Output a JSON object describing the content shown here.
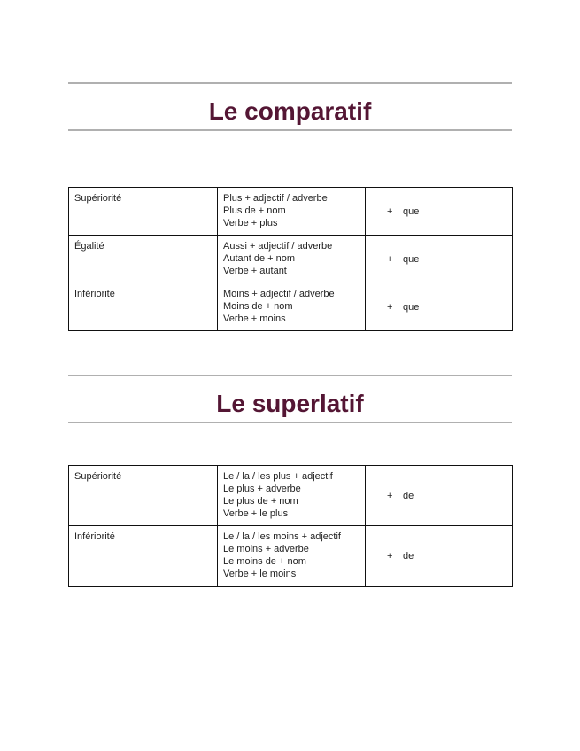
{
  "sections": [
    {
      "title": "Le comparatif",
      "rows": [
        {
          "label": "Supériorité",
          "forms": [
            "Plus + adjectif / adverbe",
            "Plus de + nom",
            "Verbe + plus"
          ],
          "plus": "+",
          "connector": "que"
        },
        {
          "label": "Égalité",
          "forms": [
            "Aussi + adjectif / adverbe",
            "Autant de + nom",
            "Verbe + autant"
          ],
          "plus": "+",
          "connector": "que"
        },
        {
          "label": "Infériorité",
          "forms": [
            "Moins + adjectif / adverbe",
            "Moins de + nom",
            "Verbe + moins"
          ],
          "plus": "+",
          "connector": "que"
        }
      ]
    },
    {
      "title": "Le superlatif",
      "rows": [
        {
          "label": "Supériorité",
          "forms": [
            "Le / la / les plus + adjectif",
            "Le plus + adverbe",
            "Le plus de + nom",
            "Verbe + le plus"
          ],
          "plus": "+",
          "connector": "de"
        },
        {
          "label": "Infériorité",
          "forms": [
            "Le / la / les moins + adjectif",
            "Le moins + adverbe",
            "Le moins de + nom",
            "Verbe + le moins"
          ],
          "plus": "+",
          "connector": "de"
        }
      ]
    }
  ],
  "colors": {
    "title": "#541634",
    "rule": "#b0b0b0"
  }
}
